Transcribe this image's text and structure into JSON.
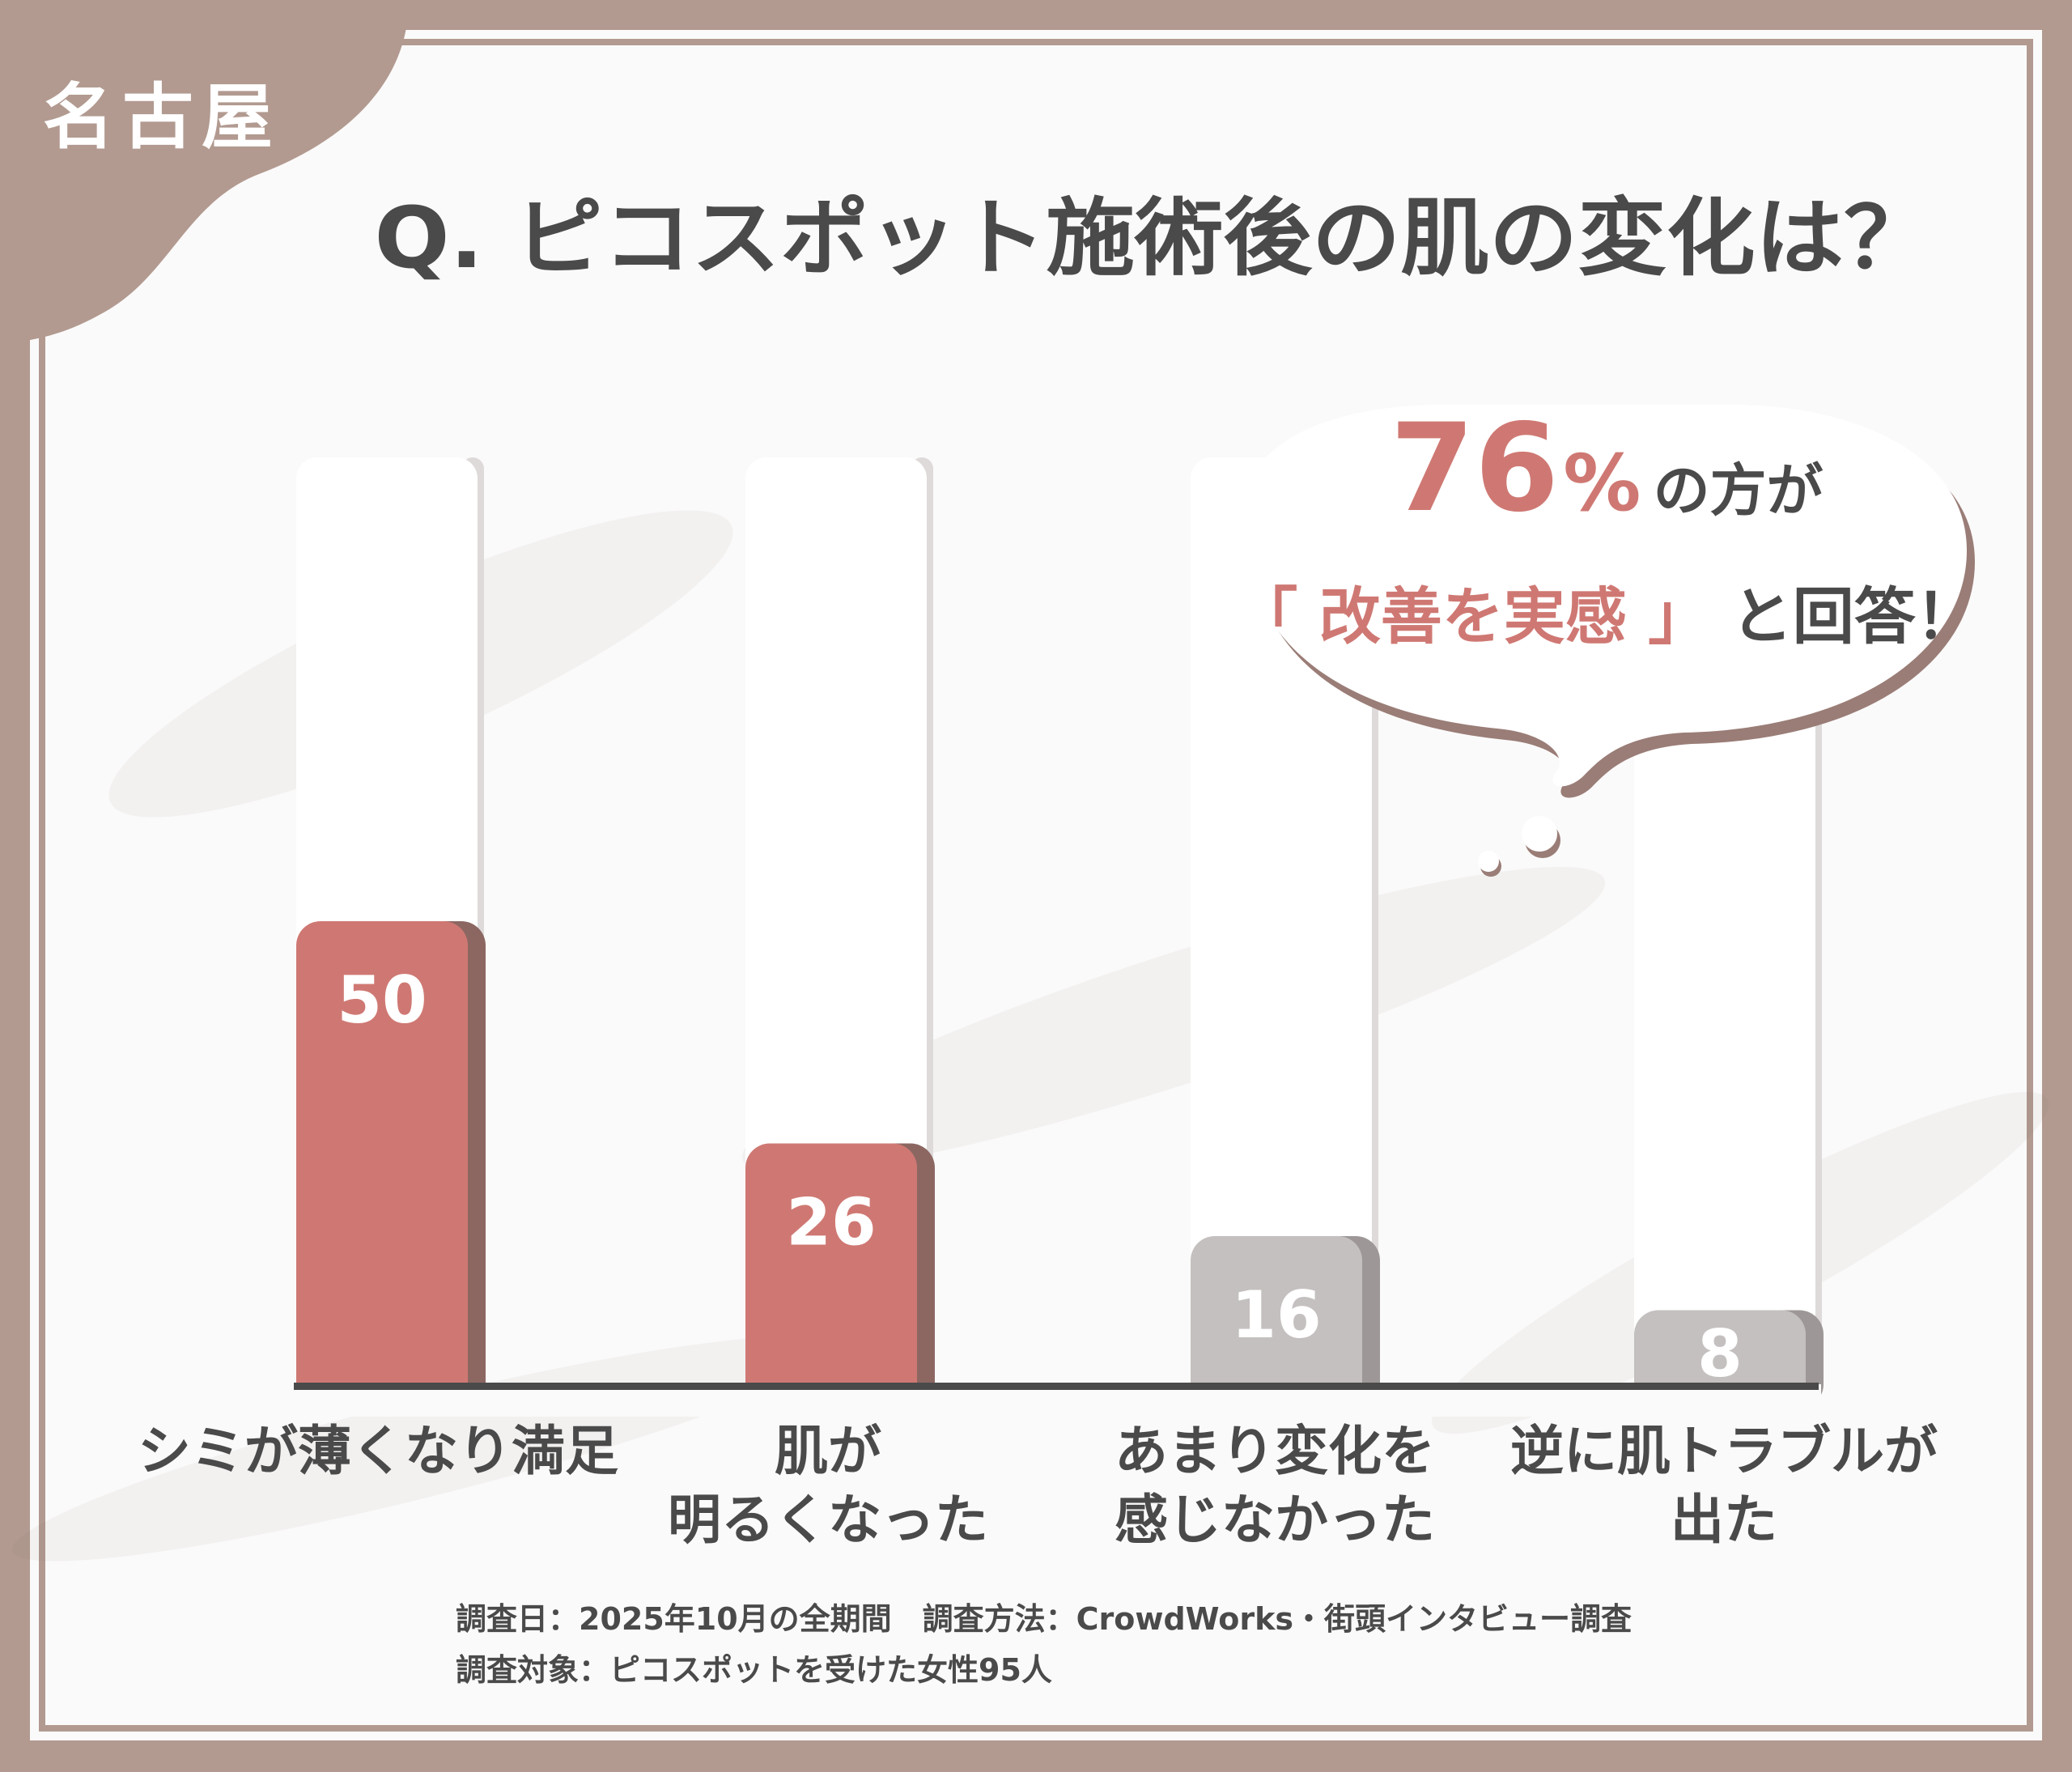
{
  "colors": {
    "frame": "#b29a90",
    "panel": "#fbfafa",
    "accent": "#cf7873",
    "accent_shadow": "#8c6762",
    "gray_bar": "#c4c0bf",
    "gray_shadow": "#9d9897",
    "text_dark": "#4a4a4a",
    "track": "#ffffff",
    "track_shadow": "#dedad9",
    "axis": "#4a4a4a",
    "bubble_shadow": "#9a7d77"
  },
  "corner_tag": {
    "label": "名古屋"
  },
  "question": {
    "title": "Q. ピコスポット施術後の肌の変化は？"
  },
  "callout": {
    "percent_number": "76",
    "percent_sign": "%",
    "line1_suffix": "の方が",
    "open_bracket": "「",
    "highlight": "改善を実感",
    "close_bracket": "」",
    "line2_suffix": "と回答！"
  },
  "chart_data": {
    "type": "bar",
    "categories": [
      [
        "シミが薄くなり満足"
      ],
      [
        "肌が",
        "明るくなった"
      ],
      [
        "あまり変化を",
        "感じなかった"
      ],
      [
        "逆に肌トラブルが",
        "出た"
      ]
    ],
    "values": [
      50,
      26,
      16,
      8
    ],
    "value_labels": [
      "50",
      "26",
      "16",
      "8"
    ],
    "highlight": [
      true,
      true,
      false,
      false
    ],
    "ylim": [
      0,
      50
    ],
    "grid": false,
    "legend": "none"
  },
  "footer": {
    "line1": "調査日：2025年10月の全期間　調査方法：CrowdWorks・街頭インタビュー調査",
    "line2": "調査対象：ピコスポットを受けた女性95人"
  }
}
